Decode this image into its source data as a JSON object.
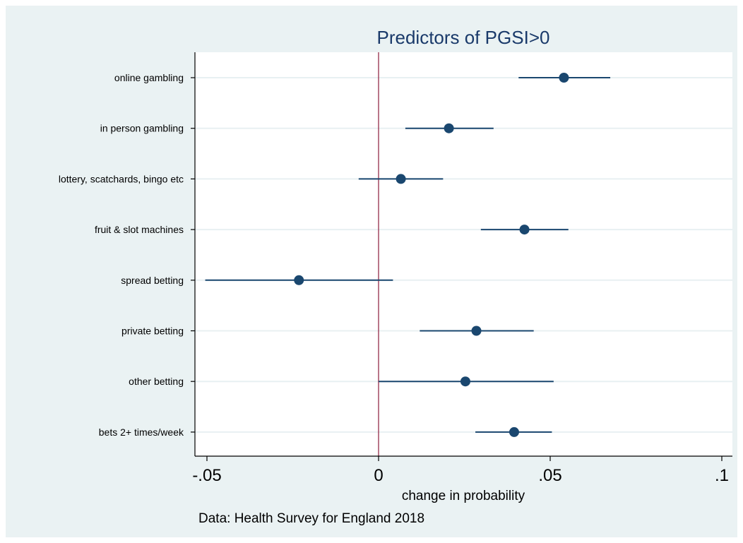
{
  "chart_data": {
    "type": "scatter",
    "subtype": "coefficient-plot-with-confidence-intervals",
    "title": "Predictors of PGSI>0",
    "xlabel": "change in probability",
    "ylabel": "",
    "note": "Data: Health Survey for England 2018",
    "xlim": [
      -0.053,
      0.103
    ],
    "xticks": [
      -0.05,
      0,
      0.05,
      0.1
    ],
    "xtick_labels": [
      "-.05",
      "0",
      ".05",
      ".1"
    ],
    "reference_line_x": 0,
    "grid": "horizontal",
    "categories": [
      "online gambling",
      "in person gambling",
      "lottery, scatchards, bingo etc",
      "fruit & slot machines",
      "spread betting",
      "private betting",
      "other betting",
      "bets 2+ times/week"
    ],
    "estimates": [
      0.054,
      0.0205,
      0.0065,
      0.0425,
      -0.0232,
      0.0285,
      0.0253,
      0.0395
    ],
    "ci_low": [
      0.0408,
      0.0078,
      -0.0058,
      0.0298,
      -0.0505,
      0.012,
      0.0,
      0.0282
    ],
    "ci_high": [
      0.0675,
      0.0335,
      0.0188,
      0.0553,
      0.0042,
      0.0452,
      0.051,
      0.0505
    ]
  },
  "colors": {
    "background": "#eaf2f3",
    "plot_area": "#ffffff",
    "marker": "#1a476f",
    "reference_line": "#8b1a3a",
    "gridline": "#e8f0f2",
    "title": "#1a3a6a"
  }
}
